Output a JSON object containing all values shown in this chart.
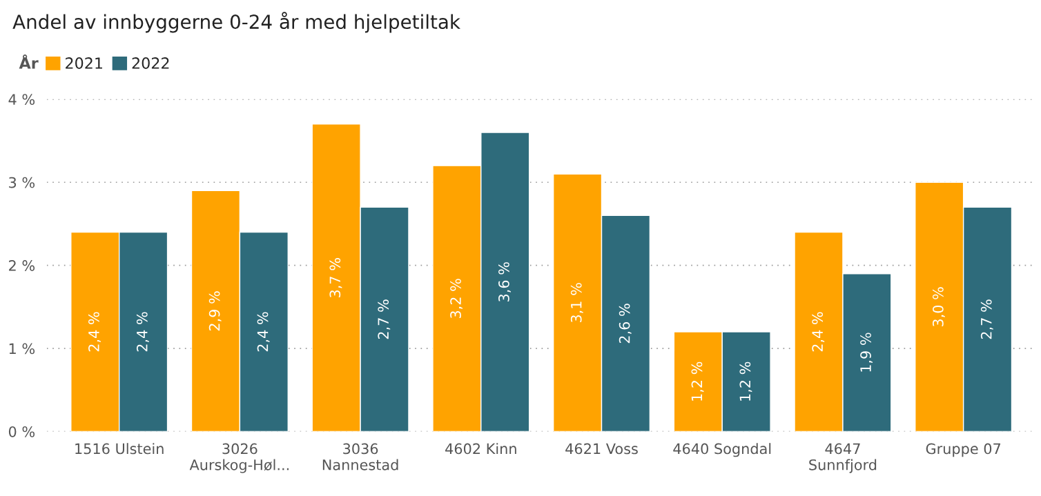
{
  "chart_data": {
    "type": "bar",
    "title": "Andel av innbyggerne 0-24 år med hjelpetiltak",
    "legend_title": "År",
    "legend": "top left",
    "grid": "y",
    "categories": [
      "1516 Ulstein",
      "3026 Aurskog-Høl...",
      "3036 Nannestad",
      "4602 Kinn",
      "4621 Voss",
      "4640 Sogndal",
      "4647 Sunnfjord",
      "Gruppe 07"
    ],
    "series": [
      {
        "name": "2021",
        "color": "#ffa300",
        "values": [
          2.4,
          2.9,
          3.7,
          3.2,
          3.1,
          1.2,
          2.4,
          3.0
        ],
        "value_labels": [
          "2,4 %",
          "2,9 %",
          "3,7 %",
          "3,2 %",
          "3,1 %",
          "1,2 %",
          "2,4 %",
          "3,0 %"
        ]
      },
      {
        "name": "2022",
        "color": "#2e6b7b",
        "values": [
          2.4,
          2.4,
          2.7,
          3.6,
          2.6,
          1.2,
          1.9,
          2.7
        ],
        "value_labels": [
          "2,4 %",
          "2,4 %",
          "2,7 %",
          "3,6 %",
          "2,6 %",
          "1,2 %",
          "1,9 %",
          "2,7 %"
        ]
      }
    ],
    "ylim": [
      0,
      4
    ],
    "yticks": [
      {
        "value": 0,
        "label": "0 %"
      },
      {
        "value": 1,
        "label": "1 %"
      },
      {
        "value": 2,
        "label": "2 %"
      },
      {
        "value": 3,
        "label": "3 %"
      },
      {
        "value": 4,
        "label": "4 %"
      }
    ]
  }
}
